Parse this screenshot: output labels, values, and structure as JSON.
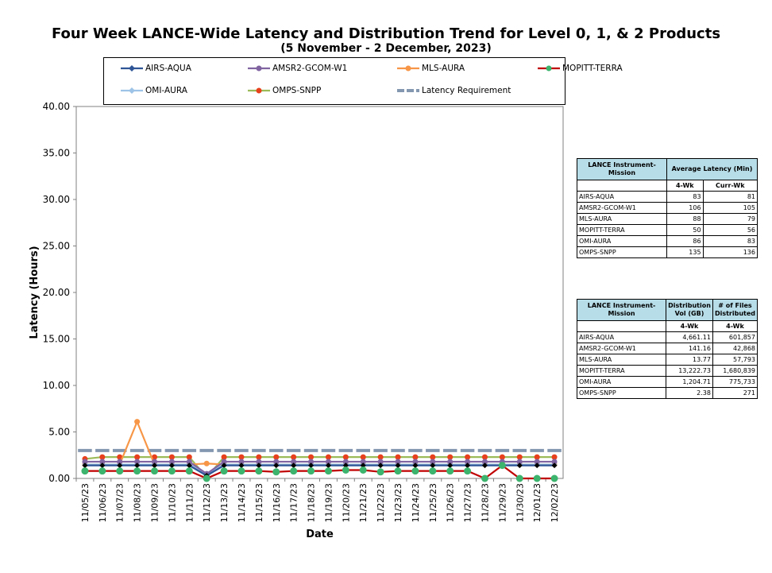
{
  "chart_data": {
    "type": "line",
    "title": "Four Week LANCE-Wide Latency and Distribution Trend for Level 0, 1, & 2 Products",
    "subtitle": "(5  November    - 2  December,  2023)",
    "xlabel": "Date",
    "ylabel": "Latency (Hours)",
    "ylim": [
      0,
      40
    ],
    "yticks": [
      "0.00",
      "5.00",
      "10.00",
      "15.00",
      "20.00",
      "25.00",
      "30.00",
      "35.00",
      "40.00"
    ],
    "grid": false,
    "legend_position": "top",
    "categories": [
      "11/05/23",
      "11/06/23",
      "11/07/23",
      "11/08/23",
      "11/09/23",
      "11/10/23",
      "11/11/23",
      "11/12/23",
      "11/13/23",
      "11/14/23",
      "11/15/23",
      "11/16/23",
      "11/17/23",
      "11/18/23",
      "11/19/23",
      "11/20/23",
      "11/21/23",
      "11/22/23",
      "11/23/23",
      "11/24/23",
      "11/25/23",
      "11/26/23",
      "11/27/23",
      "11/28/23",
      "11/29/23",
      "11/30/23",
      "12/01/23",
      "12/02/23"
    ],
    "series": [
      {
        "name": "AIRS-AQUA",
        "color": "#2f5597",
        "marker": "diamond",
        "values": [
          1.4,
          1.4,
          1.4,
          1.4,
          1.4,
          1.4,
          1.4,
          0.3,
          1.4,
          1.4,
          1.4,
          1.4,
          1.4,
          1.4,
          1.4,
          1.4,
          1.4,
          1.4,
          1.4,
          1.4,
          1.4,
          1.4,
          1.4,
          1.4,
          1.4,
          1.4,
          1.4,
          1.4
        ]
      },
      {
        "name": "AMSR2-GCOM-W1",
        "color": "#8064a2",
        "marker": "circle",
        "values": [
          1.8,
          1.8,
          1.8,
          1.8,
          1.8,
          1.8,
          1.8,
          0.5,
          1.8,
          1.8,
          1.8,
          1.8,
          1.8,
          1.8,
          1.8,
          1.8,
          1.8,
          1.8,
          1.8,
          1.8,
          1.8,
          1.8,
          1.8,
          1.8,
          1.8,
          1.8,
          1.8,
          1.8
        ]
      },
      {
        "name": "MLS-AURA",
        "color": "#f79646",
        "marker": "circle",
        "values": [
          1.5,
          1.5,
          1.5,
          6.1,
          1.5,
          1.5,
          1.5,
          1.6,
          1.5,
          1.5,
          1.5,
          1.5,
          1.5,
          1.5,
          1.5,
          1.5,
          1.5,
          1.5,
          1.5,
          1.5,
          1.5,
          1.5,
          1.5,
          1.5,
          1.5,
          1.5,
          1.5,
          1.5
        ]
      },
      {
        "name": "MOPITT-TERRA",
        "color": "#c00000",
        "marker": "circle",
        "values": [
          0.8,
          0.8,
          0.8,
          0.8,
          0.8,
          0.8,
          0.8,
          0.0,
          0.8,
          0.8,
          0.8,
          0.7,
          0.8,
          0.8,
          0.8,
          0.9,
          0.9,
          0.7,
          0.8,
          0.8,
          0.8,
          0.8,
          0.8,
          0.0,
          1.4,
          0.0,
          0.0,
          0.0
        ]
      },
      {
        "name": "OMI-AURA",
        "color": "#9dc3e6",
        "marker": "diamond",
        "values": [
          1.5,
          1.5,
          1.5,
          1.5,
          1.5,
          1.5,
          1.5,
          0.5,
          1.5,
          1.5,
          1.5,
          1.5,
          1.5,
          1.5,
          1.5,
          1.5,
          1.5,
          1.5,
          1.5,
          1.5,
          1.5,
          1.5,
          1.5,
          1.5,
          1.5,
          1.5,
          1.5,
          1.5
        ]
      },
      {
        "name": "OMPS-SNPP",
        "color": "#9bbb59",
        "marker": "circle",
        "values": [
          2.1,
          2.3,
          2.3,
          2.3,
          2.3,
          2.3,
          2.3,
          0.1,
          2.3,
          2.3,
          2.3,
          2.3,
          2.3,
          2.3,
          2.3,
          2.3,
          2.3,
          2.3,
          2.3,
          2.3,
          2.3,
          2.3,
          2.3,
          2.3,
          2.3,
          2.3,
          2.3,
          2.3
        ]
      },
      {
        "name": "Latency Requirement",
        "color": "#8497b0",
        "marker": "none",
        "values": [
          3,
          3,
          3,
          3,
          3,
          3,
          3,
          3,
          3,
          3,
          3,
          3,
          3,
          3,
          3,
          3,
          3,
          3,
          3,
          3,
          3,
          3,
          3,
          3,
          3,
          3,
          3,
          3
        ]
      }
    ]
  },
  "latency_table": {
    "h_mission": "LANCE Instrument-Mission",
    "h_avg": "Average Latency (Min)",
    "h_4wk": "4-Wk",
    "h_curr": "Curr-Wk",
    "rows": [
      {
        "name": "AIRS-AQUA",
        "wk4": "83",
        "curr": "81"
      },
      {
        "name": "AMSR2-GCOM-W1",
        "wk4": "106",
        "curr": "105"
      },
      {
        "name": "MLS-AURA",
        "wk4": "88",
        "curr": "79"
      },
      {
        "name": "MOPITT-TERRA",
        "wk4": "50",
        "curr": "56"
      },
      {
        "name": "OMI-AURA",
        "wk4": "86",
        "curr": "83"
      },
      {
        "name": "OMPS-SNPP",
        "wk4": "135",
        "curr": "136"
      }
    ]
  },
  "dist_table": {
    "h_mission": "LANCE Instrument-Mission",
    "h_vol": "Distribution Vol (GB)",
    "h_files": "# of Files Distributed",
    "h_4wk_a": "4-Wk",
    "h_4wk_b": "4-Wk",
    "rows": [
      {
        "name": "AIRS-AQUA",
        "vol": "4,661.11",
        "files": "601,857"
      },
      {
        "name": "AMSR2-GCOM-W1",
        "vol": "141.16",
        "files": "42,868"
      },
      {
        "name": "MLS-AURA",
        "vol": "13.77",
        "files": "57,793"
      },
      {
        "name": "MOPITT-TERRA",
        "vol": "13,222.73",
        "files": "1,680,839"
      },
      {
        "name": "OMI-AURA",
        "vol": "1,204.71",
        "files": "775,733"
      },
      {
        "name": "OMPS-SNPP",
        "vol": "2.38",
        "files": "271"
      }
    ]
  }
}
